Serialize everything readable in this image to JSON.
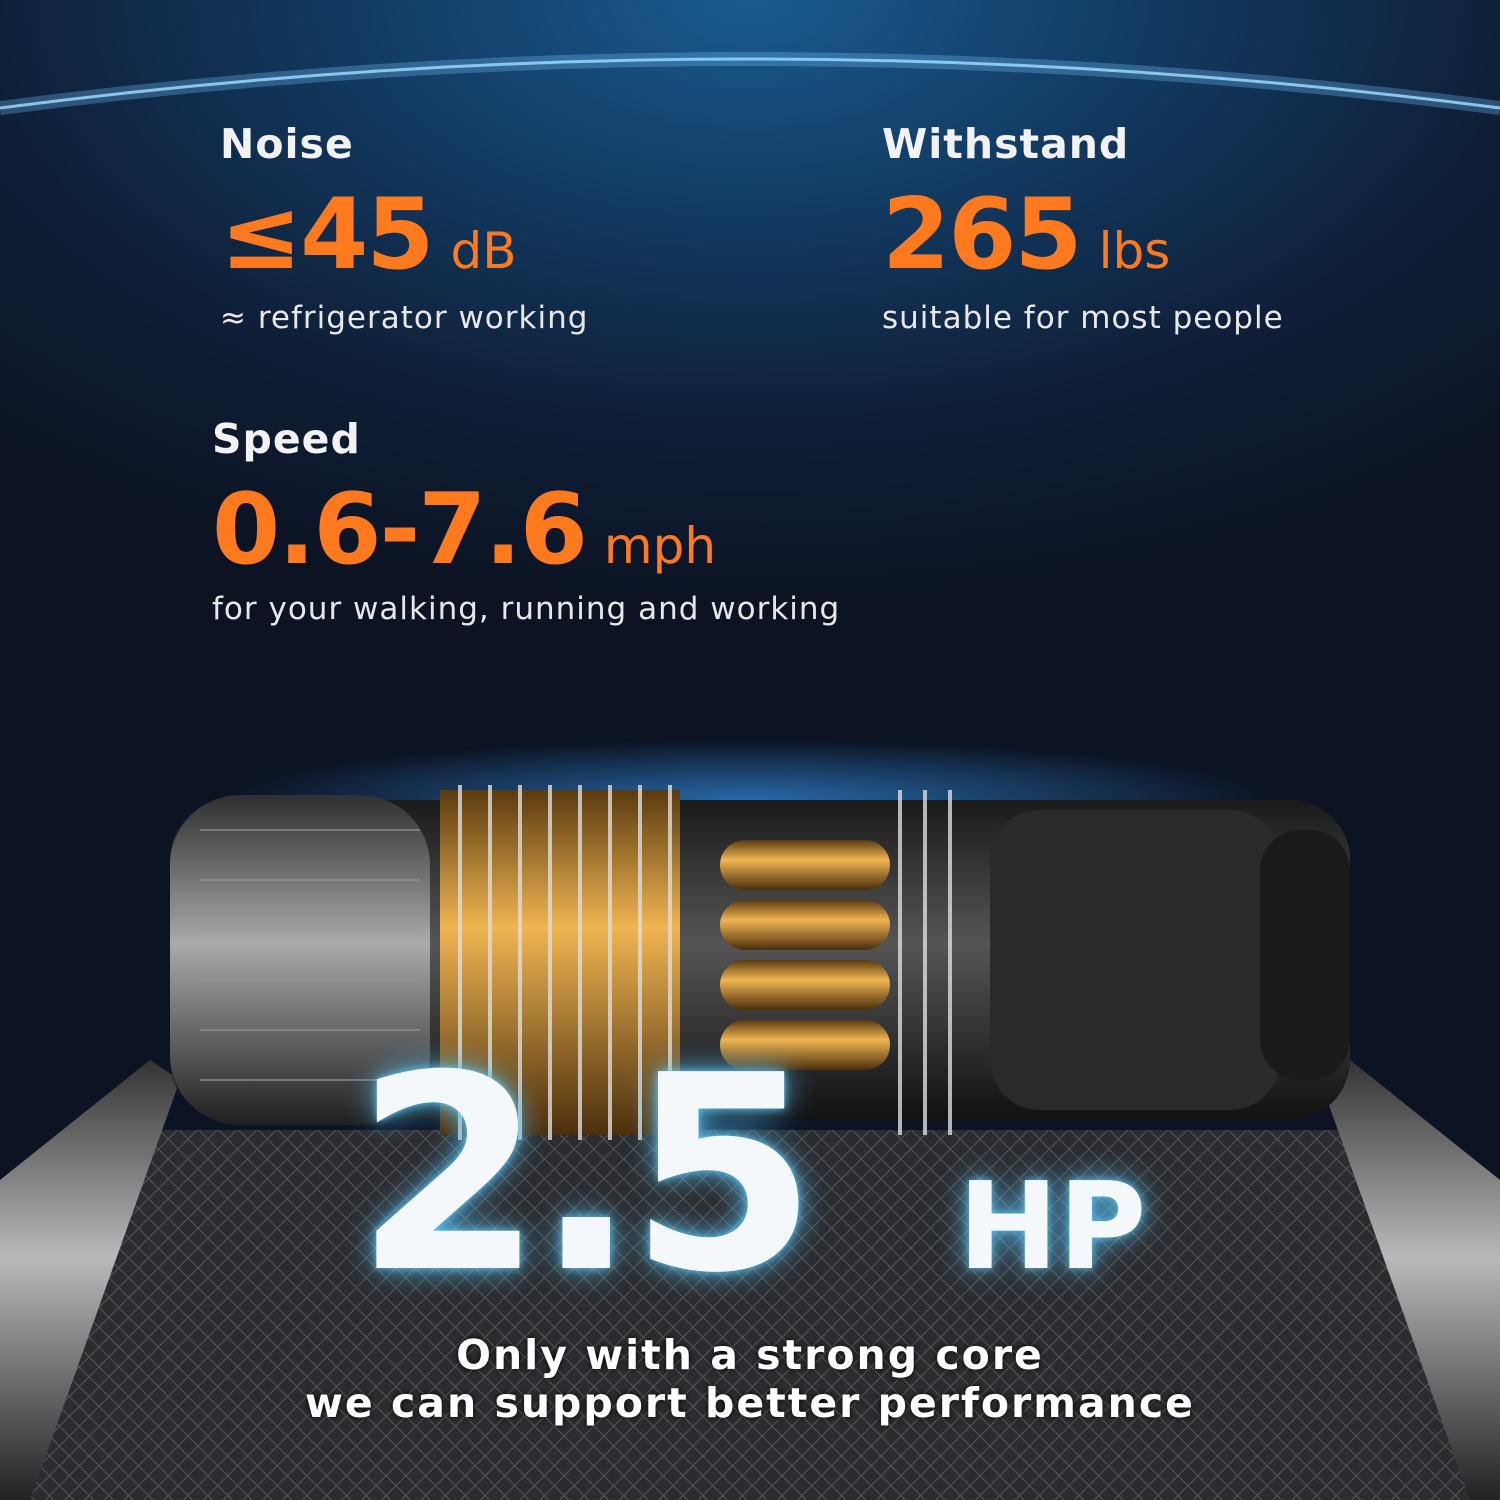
{
  "specs": {
    "noise": {
      "label": "Noise",
      "value": "≤45",
      "unit": "dB",
      "note": "≈ refrigerator working"
    },
    "withstand": {
      "label": "Withstand",
      "value": "265",
      "unit": "lbs",
      "note": "suitable for most people"
    },
    "speed": {
      "label": "Speed",
      "value": "0.6-7.6",
      "unit": "mph",
      "note": "for your walking, running and working"
    }
  },
  "power": {
    "value": "2.5",
    "unit": "HP"
  },
  "tagline": {
    "line1": "Only with a strong core",
    "line2": "we can support better performance"
  },
  "colors": {
    "accent": "#ff7a1f",
    "background": "#0f1f38",
    "glow": "#5ac8ff"
  },
  "images": {
    "motor": "motor-illustration",
    "treadmill": "treadmill-belt"
  }
}
